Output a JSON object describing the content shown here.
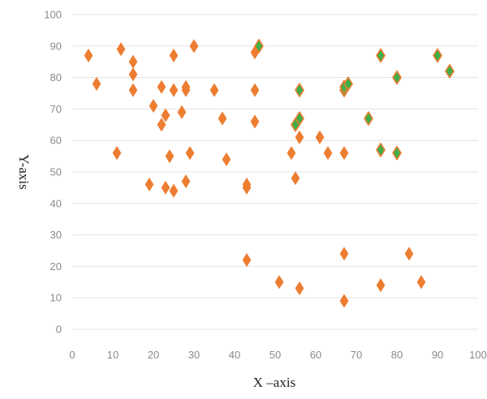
{
  "chart_data": {
    "type": "scatter",
    "title": "",
    "xlabel": "X –axis",
    "ylabel": "Y-axis",
    "xlim": [
      0,
      100
    ],
    "ylim": [
      0,
      100
    ],
    "x_ticks": [
      0,
      10,
      20,
      30,
      40,
      50,
      60,
      70,
      80,
      90,
      100
    ],
    "y_ticks": [
      0,
      10,
      20,
      30,
      40,
      50,
      60,
      70,
      80,
      90,
      100
    ],
    "grid": "horizontal",
    "legend": "none",
    "marker": "diamond",
    "colors": {
      "primary_fill": "#ED7D31",
      "highlight_fill": "#3FAE49",
      "gridline": "#e3e3e3",
      "tick_text": "#8a8a8a"
    },
    "series": [
      {
        "points": [
          {
            "x": 4,
            "y": 87
          },
          {
            "x": 6,
            "y": 78
          },
          {
            "x": 11,
            "y": 56
          },
          {
            "x": 12,
            "y": 89
          },
          {
            "x": 15,
            "y": 85
          },
          {
            "x": 15,
            "y": 81
          },
          {
            "x": 15,
            "y": 76
          },
          {
            "x": 19,
            "y": 46
          },
          {
            "x": 20,
            "y": 71
          },
          {
            "x": 22,
            "y": 77
          },
          {
            "x": 22,
            "y": 65
          },
          {
            "x": 23,
            "y": 68
          },
          {
            "x": 23,
            "y": 45
          },
          {
            "x": 24,
            "y": 55
          },
          {
            "x": 25,
            "y": 87
          },
          {
            "x": 25,
            "y": 76
          },
          {
            "x": 25,
            "y": 44
          },
          {
            "x": 27,
            "y": 69
          },
          {
            "x": 28,
            "y": 77
          },
          {
            "x": 28,
            "y": 76
          },
          {
            "x": 28,
            "y": 47
          },
          {
            "x": 29,
            "y": 56
          },
          {
            "x": 30,
            "y": 90
          },
          {
            "x": 35,
            "y": 76
          },
          {
            "x": 37,
            "y": 67
          },
          {
            "x": 38,
            "y": 54
          },
          {
            "x": 43,
            "y": 46
          },
          {
            "x": 43,
            "y": 45
          },
          {
            "x": 43,
            "y": 22
          },
          {
            "x": 45,
            "y": 88
          },
          {
            "x": 45,
            "y": 76
          },
          {
            "x": 45,
            "y": 66
          },
          {
            "x": 51,
            "y": 15
          },
          {
            "x": 54,
            "y": 56
          },
          {
            "x": 55,
            "y": 48
          },
          {
            "x": 56,
            "y": 61
          },
          {
            "x": 56,
            "y": 13
          },
          {
            "x": 61,
            "y": 61
          },
          {
            "x": 63,
            "y": 56
          },
          {
            "x": 67,
            "y": 56
          },
          {
            "x": 67,
            "y": 24
          },
          {
            "x": 67,
            "y": 9
          },
          {
            "x": 76,
            "y": 14
          },
          {
            "x": 83,
            "y": 24
          },
          {
            "x": 86,
            "y": 15
          }
        ]
      },
      {
        "points": [
          {
            "x": 46,
            "y": 90
          },
          {
            "x": 55,
            "y": 65
          },
          {
            "x": 56,
            "y": 67
          },
          {
            "x": 56,
            "y": 76
          },
          {
            "x": 67,
            "y": 76
          },
          {
            "x": 67,
            "y": 77
          },
          {
            "x": 68,
            "y": 78
          },
          {
            "x": 73,
            "y": 67
          },
          {
            "x": 76,
            "y": 87
          },
          {
            "x": 76,
            "y": 57
          },
          {
            "x": 80,
            "y": 80
          },
          {
            "x": 80,
            "y": 56
          },
          {
            "x": 90,
            "y": 87
          },
          {
            "x": 93,
            "y": 82
          }
        ]
      }
    ]
  }
}
